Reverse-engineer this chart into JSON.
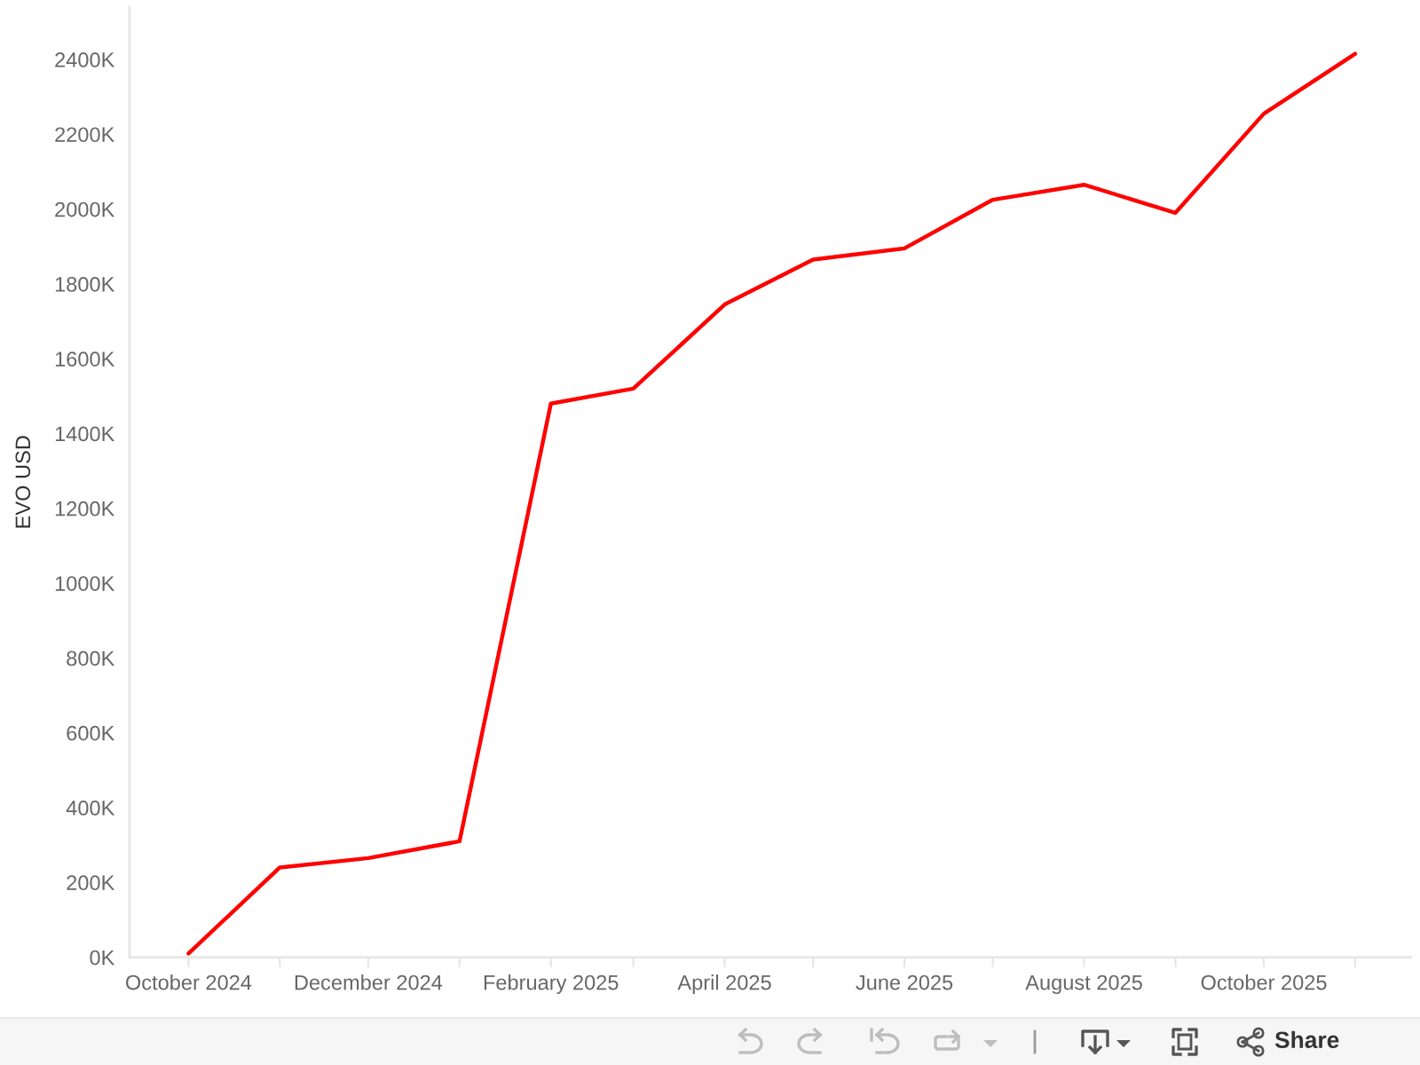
{
  "chart_data": {
    "type": "line",
    "ylabel": "EVO USD",
    "x": [
      "2024-10-01",
      "2024-11-01",
      "2024-12-01",
      "2025-01-01",
      "2025-02-01",
      "2025-03-01",
      "2025-04-01",
      "2025-05-01",
      "2025-06-01",
      "2025-07-01",
      "2025-08-01",
      "2025-09-01",
      "2025-10-01",
      "2025-11-01"
    ],
    "series": [
      {
        "color": "#ff0000",
        "values": [
          10000,
          240000,
          265000,
          310000,
          1480000,
          1520000,
          1745000,
          1865000,
          1895000,
          2025000,
          2065000,
          1990000,
          2255000,
          2415000
        ]
      }
    ],
    "xlim": [
      "2024-09-11",
      "2025-11-20"
    ],
    "xticks": [
      {
        "value": "2024-10-01",
        "label": "October 2024"
      },
      {
        "value": "2024-11-01",
        "label": null
      },
      {
        "value": "2024-12-01",
        "label": "December 2024"
      },
      {
        "value": "2025-01-01",
        "label": null
      },
      {
        "value": "2025-02-01",
        "label": "February 2025"
      },
      {
        "value": "2025-03-01",
        "label": null
      },
      {
        "value": "2025-04-01",
        "label": "April 2025"
      },
      {
        "value": "2025-05-01",
        "label": null
      },
      {
        "value": "2025-06-01",
        "label": "June 2025"
      },
      {
        "value": "2025-07-01",
        "label": null
      },
      {
        "value": "2025-08-01",
        "label": "August 2025"
      },
      {
        "value": "2025-09-01",
        "label": null
      },
      {
        "value": "2025-10-01",
        "label": "October 2025"
      },
      {
        "value": "2025-11-01",
        "label": null
      }
    ],
    "ylim": [
      0,
      2540000
    ],
    "yticks": [
      {
        "value": 0,
        "label": "0K"
      },
      {
        "value": 200000,
        "label": "200K"
      },
      {
        "value": 400000,
        "label": "400K"
      },
      {
        "value": 600000,
        "label": "600K"
      },
      {
        "value": 800000,
        "label": "800K"
      },
      {
        "value": 1000000,
        "label": "1000K"
      },
      {
        "value": 1200000,
        "label": "1200K"
      },
      {
        "value": 1400000,
        "label": "1400K"
      },
      {
        "value": 1600000,
        "label": "1600K"
      },
      {
        "value": 1800000,
        "label": "1800K"
      },
      {
        "value": 2000000,
        "label": "2000K"
      },
      {
        "value": 2200000,
        "label": "2200K"
      },
      {
        "value": 2400000,
        "label": "2400K"
      }
    ],
    "line_style": "solid",
    "annotations": [
      "Share"
    ]
  }
}
